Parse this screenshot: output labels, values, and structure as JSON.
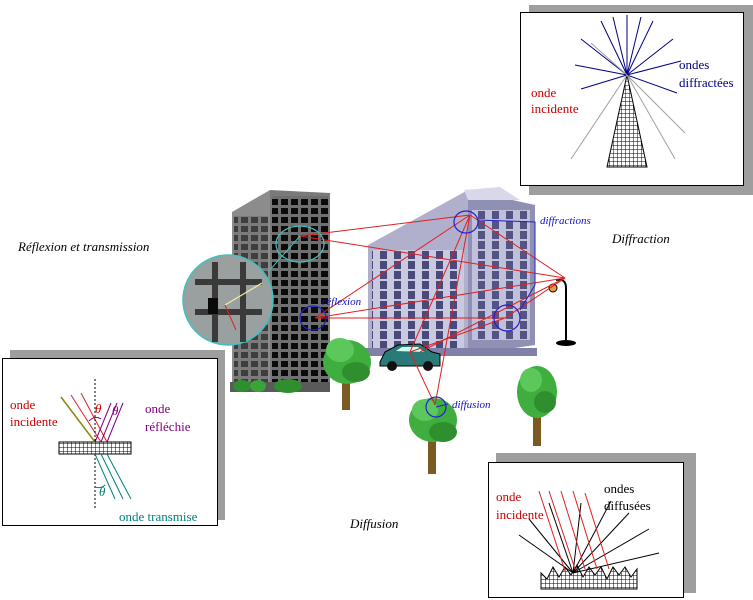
{
  "scene": {
    "reflexion_transmission": "Réflexion et transmission",
    "diffraction": "Diffraction",
    "diffusion": "Diffusion",
    "reflexion_marker": "réflexion",
    "diffractions_marker": "diffractions",
    "diffusion_marker": "diffusion"
  },
  "diffraction_panel": {
    "incident": "onde",
    "incident_2": "incidente",
    "diffracted": "ondes",
    "diffracted_2": "diffractées"
  },
  "reflexion_panel": {
    "incident": "onde",
    "incident_2": "incidente",
    "reflected": "onde",
    "reflected_2": "réfléchie",
    "transmitted": "onde transmise",
    "theta": "θ"
  },
  "diffusion_panel": {
    "incident": "onde",
    "incident_2": "incidente",
    "diffused": "ondes",
    "diffused_2": "diffusées"
  },
  "colors": {
    "incident": "#cc0000",
    "reflected": "#800080",
    "transmitted": "#008080",
    "diffracted": "#000080",
    "markers": "#1010c0",
    "rays": "#e02020"
  }
}
